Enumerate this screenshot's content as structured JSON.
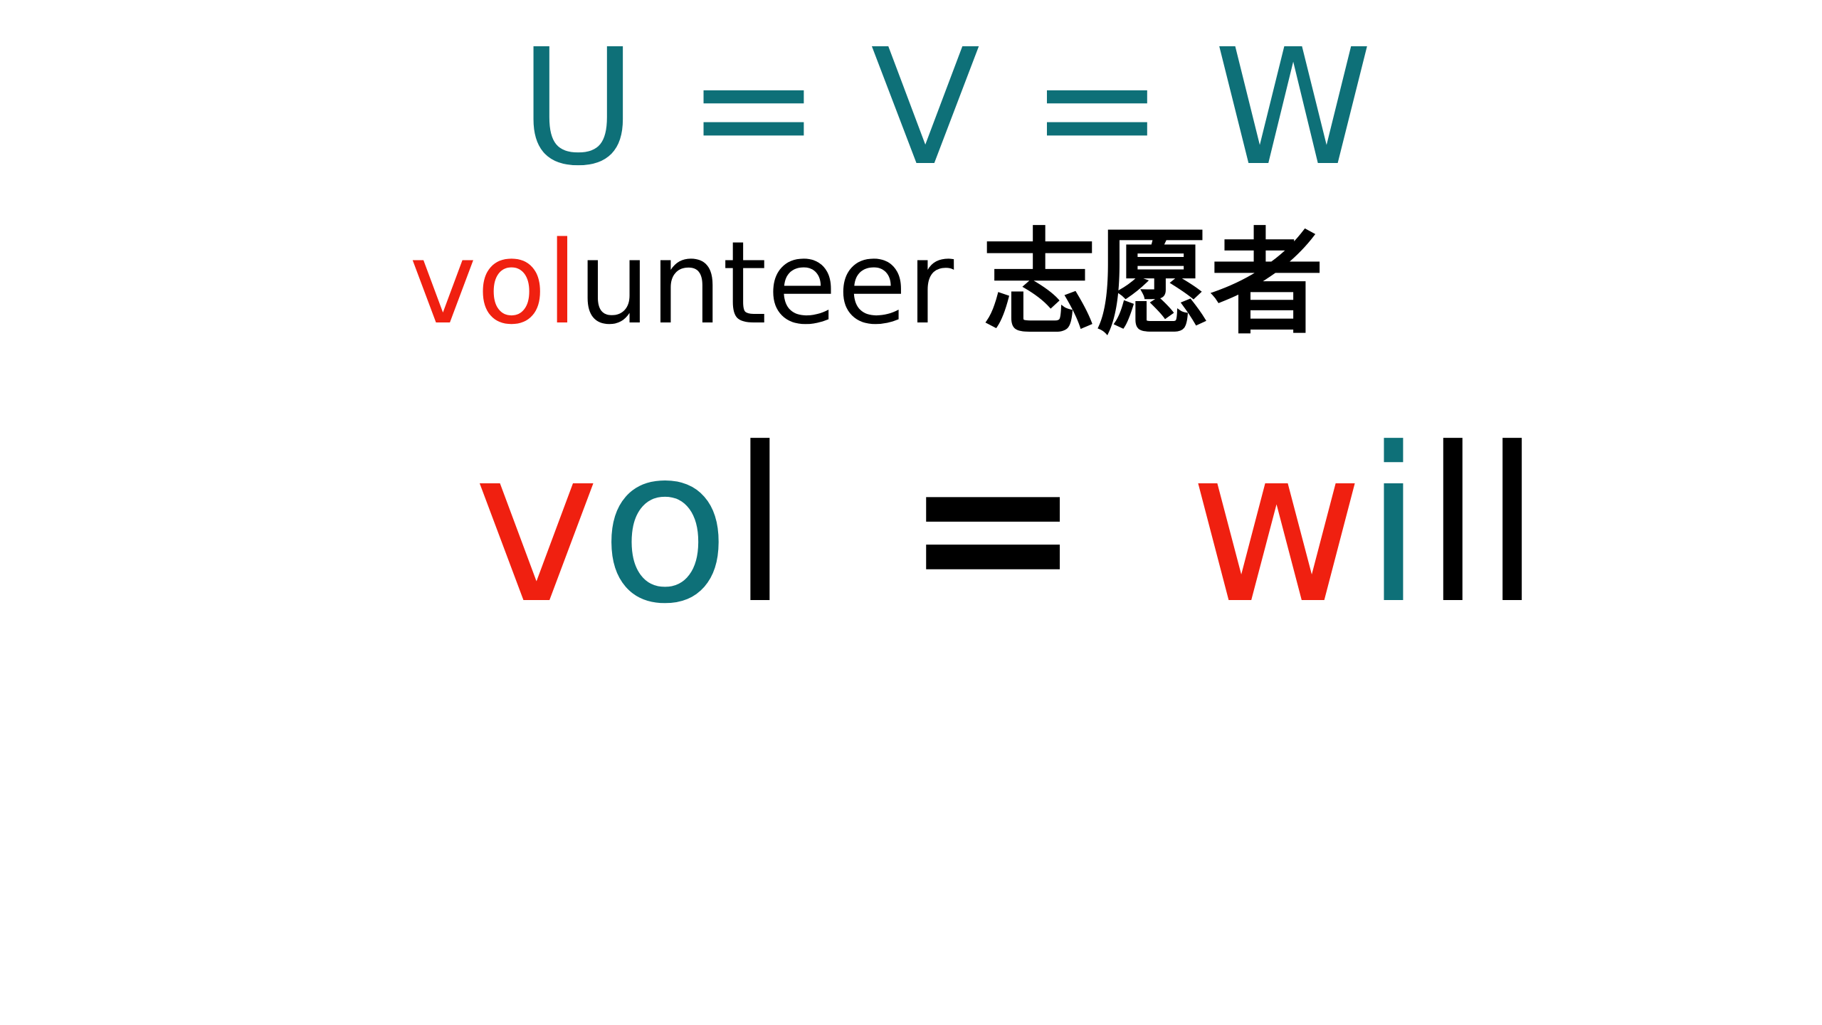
{
  "colors": {
    "teal": "#0e7078",
    "red": "#f02010",
    "black": "#000000"
  },
  "line1": {
    "parts": [
      {
        "text": "U",
        "color": "#0e7078"
      },
      {
        "text": "=",
        "color": "#0e7078"
      },
      {
        "text": "V",
        "color": "#0e7078"
      },
      {
        "text": "=",
        "color": "#0e7078"
      },
      {
        "text": "W",
        "color": "#0e7078"
      }
    ]
  },
  "line2": {
    "parts": [
      {
        "text": "vol",
        "color": "#f02010"
      },
      {
        "text": "unteer",
        "color": "#000000"
      }
    ],
    "chinese": "志愿者"
  },
  "line3": {
    "parts": [
      {
        "text": "v",
        "color": "#f02010"
      },
      {
        "text": "o",
        "color": "#0e7078"
      },
      {
        "text": "l",
        "color": "#000000"
      },
      {
        "text": "=",
        "color": "#000000"
      },
      {
        "text": "w",
        "color": "#f02010"
      },
      {
        "text": "i",
        "color": "#0e7078"
      },
      {
        "text": "ll",
        "color": "#000000"
      }
    ]
  }
}
